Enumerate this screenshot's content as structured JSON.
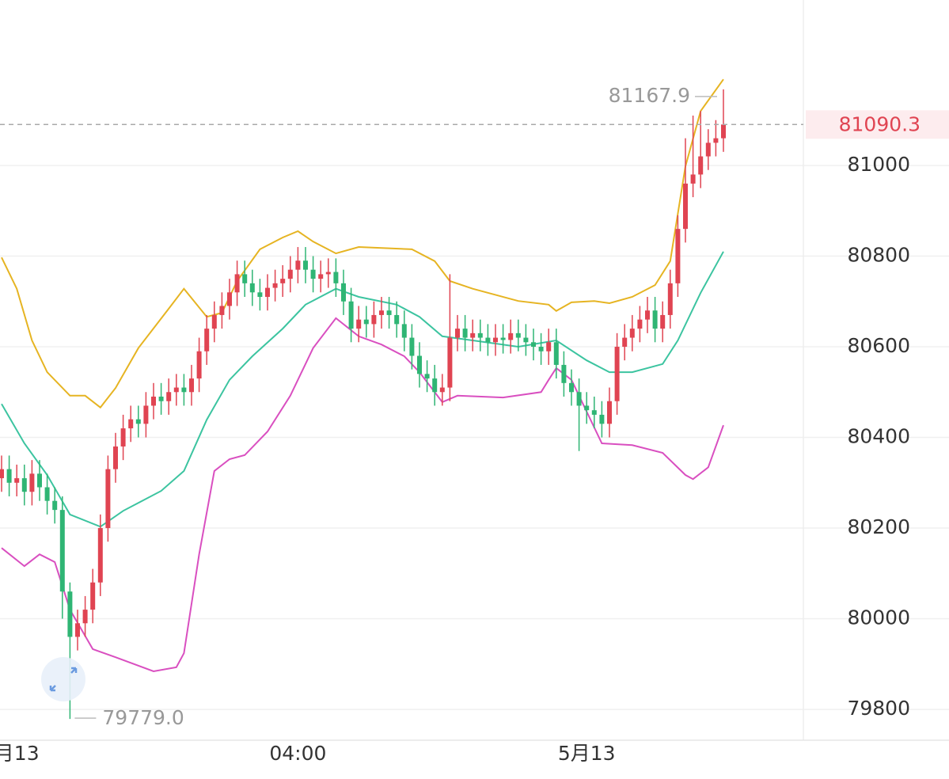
{
  "chart_data": {
    "type": "candlestick",
    "ylim": [
      79732,
      81365
    ],
    "yticks": [
      79800,
      80000,
      80200,
      80400,
      80600,
      80800,
      81000
    ],
    "grid": true,
    "up_color": "#e04452",
    "down_color": "#2fb574",
    "categories": [
      null,
      null,
      "月13",
      null,
      null,
      null,
      null,
      null,
      null,
      null,
      null,
      null,
      null,
      null,
      null,
      null,
      null,
      null,
      null,
      null,
      null,
      null,
      null,
      null,
      null,
      null,
      null,
      null,
      null,
      null,
      null,
      null,
      null,
      null,
      null,
      null,
      null,
      null,
      null,
      "04:00",
      null,
      null,
      null,
      null,
      null,
      null,
      null,
      null,
      null,
      null,
      null,
      null,
      null,
      null,
      null,
      null,
      null,
      null,
      null,
      null,
      null,
      null,
      null,
      null,
      null,
      null,
      null,
      null,
      null,
      null,
      null,
      null,
      null,
      null,
      null,
      null,
      null,
      "5月13",
      null,
      null,
      null,
      null,
      null,
      null,
      null,
      null,
      null,
      null,
      null,
      null,
      null,
      null,
      null,
      null,
      null,
      null
    ],
    "open": [
      80310,
      80330,
      80300,
      80310,
      80280,
      80320,
      80290,
      80260,
      80240,
      80060,
      79960,
      79990,
      80020,
      80080,
      80200,
      80330,
      80380,
      80420,
      80440,
      80430,
      80470,
      80490,
      80480,
      80500,
      80510,
      80500,
      80530,
      80590,
      80640,
      80670,
      80690,
      80720,
      80760,
      80740,
      80720,
      80710,
      80730,
      80740,
      80750,
      80770,
      80790,
      80770,
      80750,
      80760,
      80765,
      80740,
      80700,
      80640,
      80660,
      80650,
      80670,
      80680,
      80670,
      80650,
      80620,
      80580,
      80540,
      80530,
      80500,
      80510,
      80620,
      80640,
      80620,
      80630,
      80620,
      80610,
      80620,
      80615,
      80630,
      80620,
      80610,
      80600,
      80590,
      80610,
      80560,
      80520,
      80500,
      80470,
      80460,
      80450,
      80430,
      80480,
      80600,
      80620,
      80640,
      80660,
      80680,
      80640,
      80670,
      80740,
      80860,
      80960,
      80980,
      81020,
      81050,
      81060
    ],
    "high": [
      80360,
      80360,
      80340,
      80340,
      80350,
      80350,
      80320,
      80290,
      80270,
      80080,
      80020,
      80050,
      80110,
      80230,
      80360,
      80410,
      80450,
      80470,
      80470,
      80500,
      80520,
      80520,
      80530,
      80540,
      80540,
      80560,
      80620,
      80670,
      80700,
      80720,
      80750,
      80790,
      80790,
      80770,
      80750,
      80760,
      80770,
      80780,
      80800,
      80820,
      80820,
      80800,
      80790,
      80795,
      80795,
      80770,
      80730,
      80690,
      80690,
      80700,
      80710,
      80710,
      80700,
      80680,
      80650,
      80610,
      80570,
      80560,
      80540,
      80760,
      80670,
      80670,
      80660,
      80660,
      80650,
      80650,
      80650,
      80660,
      80660,
      80650,
      80640,
      80630,
      80640,
      80640,
      80590,
      80550,
      80530,
      80500,
      80490,
      80480,
      80510,
      80630,
      80650,
      80670,
      80690,
      80710,
      80710,
      80700,
      80770,
      80890,
      81060,
      81110,
      81120,
      81080,
      81100,
      81167.9
    ],
    "low": [
      80280,
      80270,
      80270,
      80250,
      80250,
      80260,
      80230,
      80210,
      80000,
      79779,
      79930,
      79960,
      79990,
      80050,
      80170,
      80300,
      80350,
      80390,
      80400,
      80400,
      80440,
      80450,
      80450,
      80470,
      80470,
      80470,
      80500,
      80560,
      80610,
      80640,
      80660,
      80690,
      80710,
      80690,
      80680,
      80680,
      80700,
      80710,
      80720,
      80740,
      80740,
      80720,
      80720,
      80730,
      80710,
      80670,
      80610,
      80610,
      80620,
      80620,
      80640,
      80640,
      80620,
      80590,
      80550,
      80510,
      80500,
      80470,
      80470,
      80480,
      80590,
      80590,
      80590,
      80590,
      80580,
      80580,
      80585,
      80585,
      80590,
      80580,
      80570,
      80560,
      80560,
      80530,
      80490,
      80470,
      80370,
      80430,
      80420,
      80400,
      80400,
      80450,
      80570,
      80590,
      80610,
      80630,
      80610,
      80610,
      80640,
      80710,
      80830,
      80930,
      80950,
      80990,
      81020,
      81030
    ],
    "close": [
      80330,
      80300,
      80310,
      80280,
      80320,
      80290,
      80260,
      80240,
      80060,
      79960,
      79990,
      80020,
      80080,
      80200,
      80330,
      80380,
      80420,
      80440,
      80430,
      80470,
      80490,
      80480,
      80500,
      80510,
      80500,
      80530,
      80590,
      80640,
      80670,
      80690,
      80720,
      80760,
      80740,
      80720,
      80710,
      80730,
      80740,
      80750,
      80770,
      80790,
      80770,
      80750,
      80760,
      80765,
      80740,
      80700,
      80640,
      80660,
      80650,
      80670,
      80680,
      80670,
      80650,
      80620,
      80580,
      80540,
      80530,
      80500,
      80510,
      80620,
      80640,
      80620,
      80630,
      80620,
      80610,
      80620,
      80615,
      80630,
      80620,
      80610,
      80600,
      80590,
      80610,
      80560,
      80520,
      80500,
      80470,
      80460,
      80450,
      80430,
      80480,
      80600,
      80620,
      80640,
      80660,
      80680,
      80640,
      80670,
      80740,
      80860,
      80960,
      80980,
      81020,
      81050,
      81060,
      81090.3
    ],
    "lines": [
      {
        "color": "#e6b422",
        "x": [
          0,
          2,
          4,
          6,
          9,
          11,
          13,
          15,
          18,
          22,
          24,
          27,
          29,
          31,
          34,
          37,
          39,
          41,
          44,
          47,
          54,
          57,
          59,
          62,
          68,
          72,
          73,
          75,
          78,
          80,
          83,
          86,
          88,
          90,
          92,
          95
        ],
        "values": [
          80797,
          80728,
          80614,
          80544,
          80492,
          80492,
          80466,
          80509,
          80597,
          80684,
          80728,
          80666,
          80675,
          80745,
          80815,
          80841,
          80855,
          80832,
          80806,
          80820,
          80815,
          80789,
          80745,
          80728,
          80701,
          80693,
          80679,
          80698,
          80701,
          80696,
          80710,
          80736,
          80789,
          80998,
          81120,
          81190
        ]
      },
      {
        "color": "#3cc4a0",
        "x": [
          0,
          3,
          6,
          9,
          13,
          16,
          21,
          24,
          27,
          30,
          33,
          37,
          40,
          44,
          47,
          52,
          55,
          58,
          62,
          68,
          73,
          77,
          80,
          83,
          87,
          89,
          92,
          95
        ],
        "values": [
          80474,
          80387,
          80317,
          80230,
          80203,
          80238,
          80282,
          80326,
          80439,
          80527,
          80579,
          80640,
          80693,
          80728,
          80710,
          80693,
          80666,
          80623,
          80614,
          80600,
          80614,
          80570,
          80544,
          80544,
          80562,
          80614,
          80719,
          80810
        ]
      },
      {
        "color": "#d94fc0",
        "x": [
          0,
          3,
          5,
          7,
          9,
          12,
          15,
          20,
          23,
          24,
          26,
          28,
          30,
          32,
          35,
          38,
          41,
          44,
          47,
          50,
          53,
          55,
          58,
          60,
          66,
          71,
          72,
          73,
          75,
          79,
          83,
          87,
          90,
          91,
          93,
          95
        ],
        "values": [
          80156,
          80116,
          80142,
          80125,
          80020,
          79933,
          79915,
          79884,
          79893,
          79924,
          80142,
          80326,
          80352,
          80361,
          80413,
          80492,
          80597,
          80663,
          80623,
          80605,
          80579,
          80544,
          80478,
          80492,
          80488,
          80500,
          80527,
          80553,
          80527,
          80387,
          80383,
          80366,
          80317,
          80308,
          80334,
          80427
        ]
      }
    ],
    "high_label": 81167.9,
    "low_label": {
      "value": 79779,
      "label": "79779.0"
    },
    "last_price": 81090.3,
    "last_price_color": "#e04452"
  }
}
